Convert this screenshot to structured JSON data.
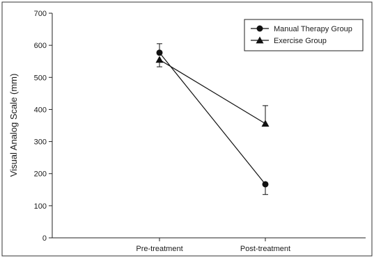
{
  "chart_data": {
    "type": "line",
    "title": "",
    "xlabel": "",
    "ylabel": "Visual Analog Scale (mm)",
    "categories": [
      "Pre-treatment",
      "Post-treatment"
    ],
    "ylim": [
      0,
      700
    ],
    "yticks": [
      0,
      100,
      200,
      300,
      400,
      500,
      600,
      700
    ],
    "grid": false,
    "legend_position": "top-right",
    "series": [
      {
        "name": "Manual Therapy Group",
        "marker": "circle",
        "values": [
          577,
          167
        ],
        "error_low": [
          null,
          135
        ],
        "error_high": [
          605,
          null
        ]
      },
      {
        "name": "Exercise Group",
        "marker": "triangle",
        "values": [
          555,
          356
        ],
        "error_low": [
          533,
          null
        ],
        "error_high": [
          null,
          412
        ]
      }
    ]
  }
}
